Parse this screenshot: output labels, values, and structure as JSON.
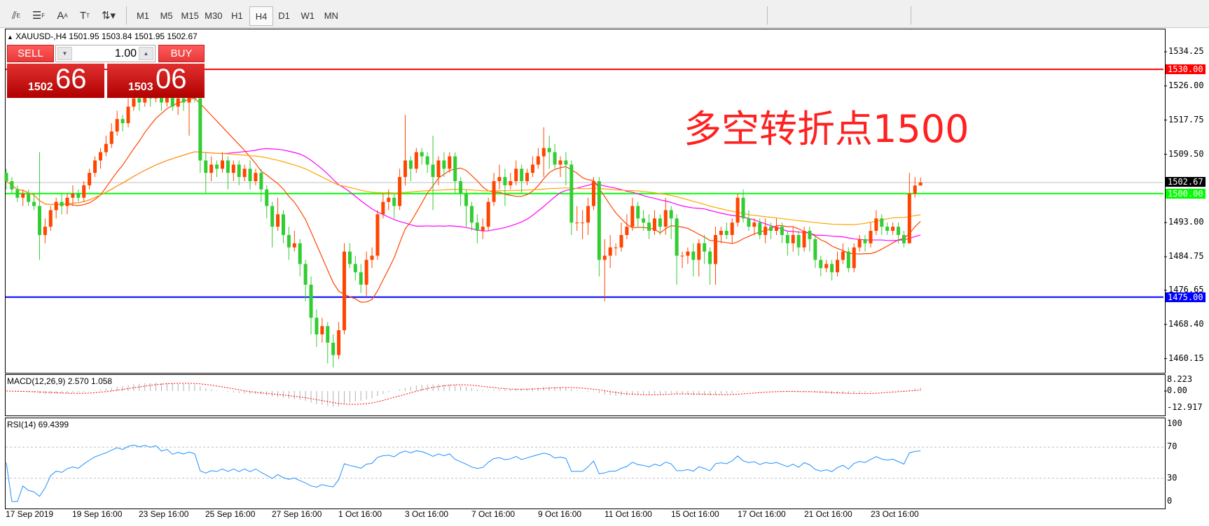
{
  "toolbar": {
    "tools": [
      {
        "icon": "elliott-wave-icon",
        "label": "E"
      },
      {
        "icon": "fibonacci-icon",
        "label": "F"
      },
      {
        "icon": "text-icon",
        "label": "A"
      },
      {
        "icon": "text-label-icon",
        "label": "T"
      },
      {
        "icon": "arrows-dropdown-icon",
        "label": ""
      }
    ],
    "timeframes": [
      "M1",
      "M5",
      "M15",
      "M30",
      "H1",
      "H4",
      "D1",
      "W1",
      "MN"
    ],
    "active_timeframe": "H4"
  },
  "chart": {
    "header": "XAUUSD-,H4  1501.95 1503.84 1501.95 1502.67",
    "annotation": "多空转折点1500",
    "price_ticks": [
      "1534.25",
      "1526.00",
      "1517.75",
      "1509.50",
      "1493.00",
      "1484.75",
      "1476.65",
      "1468.40",
      "1460.15"
    ],
    "hlines": [
      {
        "label": "1530.00",
        "price": 1530.0,
        "color": "#ff0000"
      },
      {
        "label": "1500.00",
        "price": 1500.0,
        "color": "#00ff00"
      },
      {
        "label": "1475.00",
        "price": 1475.0,
        "color": "#0000ff"
      }
    ],
    "current_price": {
      "label": "1502.67",
      "price": 1502.67
    },
    "date_labels": [
      "17 Sep 2019",
      "19 Sep 16:00",
      "23 Sep 16:00",
      "25 Sep 16:00",
      "27 Sep 16:00",
      "1 Oct 16:00",
      "3 Oct 16:00",
      "7 Oct 16:00",
      "9 Oct 16:00",
      "11 Oct 16:00",
      "15 Oct 16:00",
      "17 Oct 16:00",
      "21 Oct 16:00",
      "23 Oct 16:00"
    ],
    "colors": {
      "bull": "#ff4500",
      "bear": "#32cd32",
      "ma_fast": "#ff4500",
      "ma_mid": "#ff00ff",
      "ma_slow": "#ffa500"
    }
  },
  "trade_panel": {
    "sell_label": "SELL",
    "buy_label": "BUY",
    "lot": "1.00",
    "bid_big": "1502",
    "bid_small": "66",
    "ask_big": "1503",
    "ask_small": "06"
  },
  "macd": {
    "title": "MACD(12,26,9) 2.570 1.058",
    "ticks": [
      "8.223",
      "0.00",
      "-12.917"
    ],
    "range": [
      -12.917,
      8.223
    ]
  },
  "rsi": {
    "title": "RSI(14) 69.4399",
    "ticks": [
      "100",
      "70",
      "30",
      "0"
    ],
    "levels": [
      30,
      70
    ]
  },
  "chart_data": {
    "type": "candlestick",
    "symbol": "XAUUSD-",
    "timeframe": "H4",
    "ylim": [
      1460.15,
      1534.25
    ],
    "ohlc": [
      [
        1505,
        1506,
        1501,
        1503
      ],
      [
        1503,
        1504,
        1500,
        1501
      ],
      [
        1501,
        1502,
        1498,
        1499
      ],
      [
        1499,
        1501,
        1497,
        1500
      ],
      [
        1500,
        1501,
        1497,
        1498
      ],
      [
        1498,
        1500,
        1496,
        1497
      ],
      [
        1497,
        1510,
        1484,
        1490
      ],
      [
        1490,
        1494,
        1488,
        1492
      ],
      [
        1492,
        1497,
        1491,
        1496
      ],
      [
        1496,
        1499,
        1494,
        1498
      ],
      [
        1498,
        1500,
        1495,
        1497
      ],
      [
        1497,
        1500,
        1495,
        1499
      ],
      [
        1499,
        1502,
        1497,
        1500
      ],
      [
        1500,
        1501,
        1498,
        1499
      ],
      [
        1499,
        1503,
        1498,
        1502
      ],
      [
        1502,
        1506,
        1501,
        1505
      ],
      [
        1505,
        1509,
        1504,
        1508
      ],
      [
        1508,
        1511,
        1506,
        1510
      ],
      [
        1510,
        1514,
        1509,
        1512
      ],
      [
        1512,
        1517,
        1511,
        1515
      ],
      [
        1515,
        1520,
        1514,
        1518
      ],
      [
        1518,
        1519,
        1515,
        1517
      ],
      [
        1517,
        1523,
        1516,
        1521
      ],
      [
        1521,
        1525,
        1520,
        1523
      ],
      [
        1523,
        1524,
        1520,
        1522
      ],
      [
        1522,
        1526,
        1521,
        1524
      ],
      [
        1524,
        1525,
        1521,
        1523
      ],
      [
        1523,
        1527,
        1522,
        1525
      ],
      [
        1525,
        1526,
        1520,
        1522
      ],
      [
        1522,
        1525,
        1521,
        1524
      ],
      [
        1524,
        1525,
        1520,
        1521
      ],
      [
        1521,
        1524,
        1519,
        1523
      ],
      [
        1523,
        1524,
        1520,
        1522
      ],
      [
        1522,
        1525,
        1514,
        1524
      ],
      [
        1524,
        1526,
        1522,
        1523
      ],
      [
        1523,
        1524,
        1505,
        1508
      ],
      [
        1508,
        1510,
        1500,
        1505
      ],
      [
        1505,
        1509,
        1503,
        1507
      ],
      [
        1507,
        1508,
        1504,
        1506
      ],
      [
        1506,
        1510,
        1505,
        1508
      ],
      [
        1508,
        1509,
        1501,
        1505
      ],
      [
        1505,
        1508,
        1503,
        1507
      ],
      [
        1507,
        1508,
        1502,
        1504
      ],
      [
        1504,
        1507,
        1503,
        1506
      ],
      [
        1506,
        1508,
        1501,
        1503
      ],
      [
        1503,
        1506,
        1502,
        1505
      ],
      [
        1505,
        1506,
        1498,
        1501
      ],
      [
        1501,
        1502,
        1494,
        1497
      ],
      [
        1497,
        1498,
        1487,
        1492
      ],
      [
        1492,
        1499,
        1491,
        1495
      ],
      [
        1495,
        1496,
        1488,
        1490
      ],
      [
        1490,
        1492,
        1484,
        1487
      ],
      [
        1487,
        1491,
        1486,
        1488
      ],
      [
        1488,
        1489,
        1480,
        1483
      ],
      [
        1483,
        1484,
        1474,
        1478
      ],
      [
        1478,
        1480,
        1466,
        1470
      ],
      [
        1470,
        1472,
        1463,
        1466
      ],
      [
        1466,
        1470,
        1464,
        1468
      ],
      [
        1468,
        1469,
        1459,
        1464
      ],
      [
        1464,
        1466,
        1458,
        1461
      ],
      [
        1461,
        1469,
        1460,
        1467
      ],
      [
        1467,
        1488,
        1466,
        1486
      ],
      [
        1486,
        1488,
        1482,
        1483
      ],
      [
        1483,
        1485,
        1479,
        1481
      ],
      [
        1481,
        1483,
        1476,
        1478
      ],
      [
        1478,
        1486,
        1475,
        1484
      ],
      [
        1484,
        1487,
        1482,
        1485
      ],
      [
        1485,
        1496,
        1484,
        1495
      ],
      [
        1495,
        1500,
        1494,
        1498
      ],
      [
        1498,
        1501,
        1496,
        1499
      ],
      [
        1499,
        1500,
        1494,
        1497
      ],
      [
        1497,
        1506,
        1496,
        1504
      ],
      [
        1504,
        1519,
        1502,
        1508
      ],
      [
        1508,
        1509,
        1503,
        1506
      ],
      [
        1506,
        1511,
        1505,
        1510
      ],
      [
        1510,
        1511,
        1507,
        1509
      ],
      [
        1509,
        1510,
        1505,
        1507
      ],
      [
        1507,
        1514,
        1496,
        1504
      ],
      [
        1504,
        1509,
        1502,
        1508
      ],
      [
        1508,
        1510,
        1504,
        1506
      ],
      [
        1506,
        1510,
        1505,
        1509
      ],
      [
        1509,
        1510,
        1500,
        1503
      ],
      [
        1503,
        1504,
        1497,
        1500
      ],
      [
        1500,
        1501,
        1492,
        1497
      ],
      [
        1497,
        1498,
        1491,
        1493
      ],
      [
        1493,
        1495,
        1488,
        1491
      ],
      [
        1491,
        1494,
        1489,
        1492
      ],
      [
        1492,
        1499,
        1491,
        1498
      ],
      [
        1498,
        1505,
        1497,
        1503
      ],
      [
        1503,
        1507,
        1501,
        1504
      ],
      [
        1504,
        1506,
        1497,
        1502
      ],
      [
        1502,
        1505,
        1501,
        1503
      ],
      [
        1503,
        1508,
        1502,
        1506
      ],
      [
        1506,
        1507,
        1500,
        1503
      ],
      [
        1503,
        1506,
        1502,
        1505
      ],
      [
        1505,
        1509,
        1504,
        1507
      ],
      [
        1507,
        1511,
        1506,
        1509
      ],
      [
        1509,
        1516,
        1504,
        1511
      ],
      [
        1511,
        1514,
        1506,
        1510
      ],
      [
        1510,
        1512,
        1506,
        1507
      ],
      [
        1507,
        1509,
        1504,
        1508
      ],
      [
        1508,
        1510,
        1502,
        1507
      ],
      [
        1507,
        1508,
        1490,
        1493
      ],
      [
        1493,
        1497,
        1491,
        1493
      ],
      [
        1493,
        1496,
        1489,
        1493
      ],
      [
        1493,
        1499,
        1490,
        1497
      ],
      [
        1497,
        1504,
        1496,
        1503
      ],
      [
        1503,
        1504,
        1480,
        1484
      ],
      [
        1484,
        1489,
        1474,
        1485
      ],
      [
        1485,
        1490,
        1482,
        1487
      ],
      [
        1487,
        1488,
        1485,
        1487
      ],
      [
        1487,
        1493,
        1486,
        1490
      ],
      [
        1490,
        1495,
        1489,
        1492
      ],
      [
        1492,
        1499,
        1491,
        1497
      ],
      [
        1497,
        1498,
        1492,
        1494
      ],
      [
        1494,
        1496,
        1491,
        1493
      ],
      [
        1493,
        1495,
        1489,
        1491
      ],
      [
        1491,
        1496,
        1490,
        1494
      ],
      [
        1494,
        1495,
        1490,
        1492
      ],
      [
        1492,
        1499,
        1490,
        1496
      ],
      [
        1496,
        1497,
        1489,
        1494
      ],
      [
        1494,
        1495,
        1478,
        1485
      ],
      [
        1485,
        1486,
        1482,
        1485
      ],
      [
        1485,
        1487,
        1483,
        1486
      ],
      [
        1486,
        1488,
        1480,
        1484
      ],
      [
        1484,
        1489,
        1480,
        1488
      ],
      [
        1488,
        1490,
        1483,
        1486
      ],
      [
        1486,
        1487,
        1478,
        1483
      ],
      [
        1483,
        1492,
        1478,
        1490
      ],
      [
        1490,
        1492,
        1488,
        1491
      ],
      [
        1491,
        1493,
        1489,
        1490
      ],
      [
        1490,
        1494,
        1488,
        1493
      ],
      [
        1493,
        1500,
        1492,
        1499
      ],
      [
        1499,
        1501,
        1493,
        1494
      ],
      [
        1494,
        1496,
        1491,
        1492
      ],
      [
        1492,
        1494,
        1490,
        1493
      ],
      [
        1493,
        1494,
        1489,
        1490
      ],
      [
        1490,
        1494,
        1488,
        1492
      ],
      [
        1492,
        1493,
        1489,
        1491
      ],
      [
        1491,
        1494,
        1490,
        1492
      ],
      [
        1492,
        1493,
        1488,
        1490
      ],
      [
        1490,
        1491,
        1485,
        1488
      ],
      [
        1488,
        1492,
        1486,
        1490
      ],
      [
        1490,
        1491,
        1485,
        1487
      ],
      [
        1487,
        1492,
        1486,
        1491
      ],
      [
        1491,
        1492,
        1486,
        1489
      ],
      [
        1489,
        1490,
        1482,
        1484
      ],
      [
        1484,
        1485,
        1480,
        1482
      ],
      [
        1482,
        1484,
        1481,
        1483
      ],
      [
        1483,
        1484,
        1479,
        1481
      ],
      [
        1481,
        1486,
        1480,
        1484
      ],
      [
        1484,
        1488,
        1483,
        1486
      ],
      [
        1486,
        1487,
        1481,
        1482
      ],
      [
        1482,
        1488,
        1481,
        1487
      ],
      [
        1487,
        1490,
        1486,
        1489
      ],
      [
        1489,
        1490,
        1486,
        1488
      ],
      [
        1488,
        1493,
        1487,
        1491
      ],
      [
        1491,
        1496,
        1490,
        1494
      ],
      [
        1494,
        1495,
        1490,
        1492
      ],
      [
        1492,
        1493,
        1490,
        1491
      ],
      [
        1491,
        1493,
        1490,
        1492
      ],
      [
        1492,
        1493,
        1488,
        1490
      ],
      [
        1490,
        1491,
        1487,
        1488
      ],
      [
        1488,
        1505,
        1488,
        1500
      ],
      [
        1500,
        1504,
        1499,
        1501.95
      ],
      [
        1501.95,
        1503.84,
        1501.95,
        1502.67
      ]
    ]
  }
}
